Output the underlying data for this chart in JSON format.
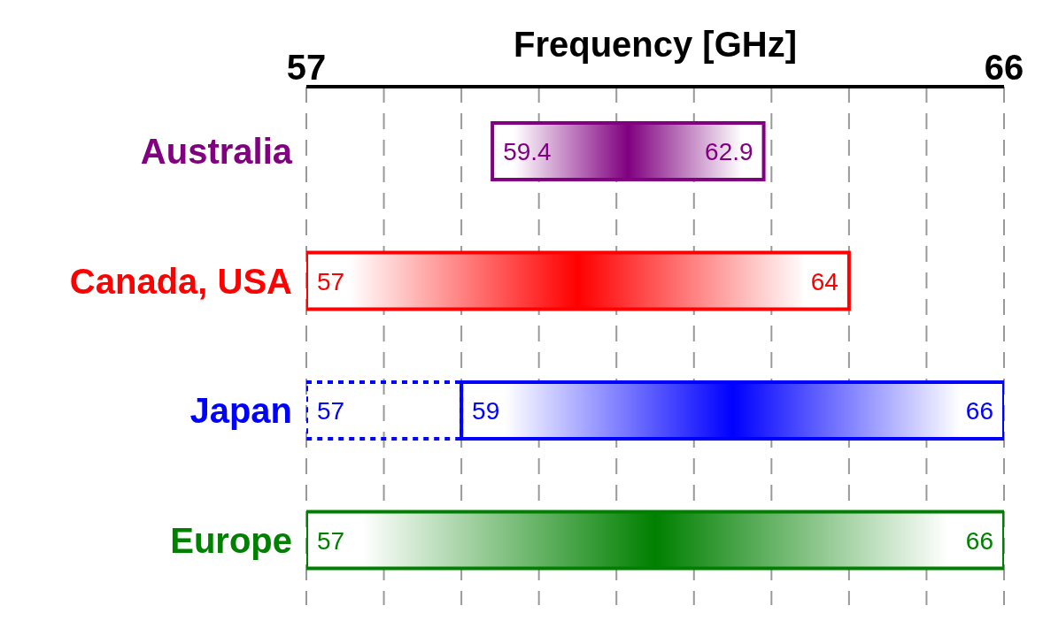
{
  "chart_data": {
    "type": "bar",
    "orientation": "horizontal",
    "xlabel": "Frequency [GHz]",
    "categories": [
      "Australia",
      "Canada, USA",
      "Japan",
      "Europe"
    ],
    "series": [
      {
        "colors": [
          "#800080",
          "#ff0000",
          "#0000ff",
          "#008000"
        ],
        "base": [
          59.4,
          57,
          59,
          57
        ],
        "values": [
          3.5,
          7,
          7,
          9
        ]
      },
      {
        "color": "#0000ff",
        "line_style": "dotted",
        "base": [
          null,
          null,
          57,
          null
        ],
        "values": [
          null,
          null,
          2,
          null
        ]
      }
    ],
    "xlim": [
      57,
      66
    ],
    "xticks": [
      57,
      {
        "value": 58,
        "label": null
      },
      {
        "value": 59,
        "label": null
      },
      {
        "value": 60,
        "label": null
      },
      {
        "value": 61,
        "label": null
      },
      {
        "value": 62,
        "label": null
      },
      {
        "value": 63,
        "label": null
      },
      {
        "value": 64,
        "label": null
      },
      {
        "value": 65,
        "label": null
      },
      66
    ],
    "grid": "x",
    "legend": false,
    "annotations": [
      {
        "text": "59.4",
        "x": 59.4,
        "y": "Australia"
      },
      {
        "text": "62.9",
        "x": 62.9,
        "y": "Australia"
      },
      {
        "text": "57",
        "x": 57,
        "y": "Canada, USA"
      },
      {
        "text": "64",
        "x": 64,
        "y": "Canada, USA"
      },
      {
        "text": "57",
        "x": 57,
        "y": "Japan"
      },
      {
        "text": "59",
        "x": 59,
        "y": "Japan"
      },
      {
        "text": "66",
        "x": 66,
        "y": "Japan"
      },
      {
        "text": "57",
        "x": 57,
        "y": "Europe"
      },
      {
        "text": "66",
        "x": 66,
        "y": "Europe"
      }
    ]
  }
}
